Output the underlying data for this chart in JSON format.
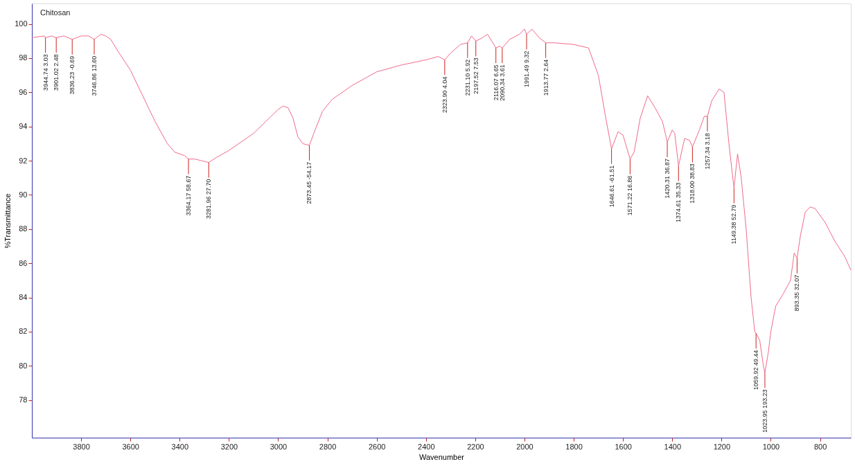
{
  "chart_data": {
    "type": "line",
    "title": "Chitosan",
    "xlabel": "Wavenumber",
    "ylabel": "%Transmittance",
    "xlim": [
      4000,
      675
    ],
    "ylim": [
      75.8,
      101.2
    ],
    "xticks": [
      3800,
      3600,
      3400,
      3200,
      3000,
      2800,
      2600,
      2400,
      2200,
      2000,
      1800,
      1600,
      1400,
      1200,
      1000,
      800
    ],
    "yticks": [
      78,
      80,
      82,
      84,
      86,
      88,
      90,
      92,
      94,
      96,
      98,
      100
    ],
    "grid": false,
    "marker": "none",
    "line_style": "solid",
    "x": [
      4000,
      3950,
      3944.74,
      3920,
      3901.02,
      3870,
      3836.23,
      3800,
      3770,
      3746.86,
      3720,
      3700,
      3680,
      3650,
      3600,
      3550,
      3500,
      3450,
      3420,
      3380,
      3364.17,
      3340,
      3310,
      3281.96,
      3250,
      3200,
      3150,
      3100,
      3050,
      3000,
      2980,
      2960,
      2940,
      2920,
      2900,
      2873.45,
      2850,
      2820,
      2780,
      2700,
      2600,
      2500,
      2400,
      2350,
      2323.9,
      2300,
      2260,
      2231.1,
      2215,
      2197.52,
      2170,
      2150,
      2116.07,
      2100,
      2090.34,
      2060,
      2020,
      2000,
      1991.49,
      1970,
      1940,
      1913.77,
      1880,
      1800,
      1740,
      1700,
      1670,
      1646.61,
      1620,
      1600,
      1571.22,
      1555,
      1530,
      1500,
      1470,
      1440,
      1420.31,
      1400,
      1390,
      1374.61,
      1350,
      1330,
      1318,
      1290,
      1270,
      1257.34,
      1240,
      1210,
      1190,
      1170,
      1149.38,
      1135,
      1120,
      1100,
      1080,
      1065,
      1059.92,
      1045,
      1030,
      1023.95,
      1010,
      1000,
      980,
      950,
      920,
      905,
      893.35,
      880,
      860,
      840,
      820,
      780,
      740,
      700,
      675
    ],
    "series": [
      {
        "color": "#f06a8a",
        "values": [
          99.2,
          99.3,
          99.2,
          99.3,
          99.2,
          99.3,
          99.1,
          99.3,
          99.3,
          99.1,
          99.4,
          99.3,
          99.1,
          98.4,
          97.3,
          95.8,
          94.3,
          93.0,
          92.5,
          92.3,
          92.1,
          92.1,
          92.0,
          91.9,
          92.2,
          92.6,
          93.1,
          93.6,
          94.3,
          95.0,
          95.2,
          95.1,
          94.5,
          93.4,
          93.0,
          92.9,
          93.8,
          94.9,
          95.6,
          96.4,
          97.2,
          97.6,
          97.9,
          98.1,
          97.9,
          98.3,
          98.8,
          98.9,
          99.3,
          99.0,
          99.2,
          99.4,
          98.6,
          98.7,
          98.6,
          99.1,
          99.4,
          99.7,
          99.4,
          99.7,
          99.2,
          98.9,
          98.9,
          98.8,
          98.6,
          97.0,
          94.5,
          92.7,
          93.7,
          93.5,
          92.1,
          92.5,
          94.5,
          95.8,
          95.1,
          94.3,
          93.1,
          93.8,
          93.6,
          91.7,
          93.3,
          93.2,
          92.8,
          93.8,
          94.6,
          94.6,
          95.5,
          96.2,
          96.0,
          93.0,
          90.4,
          92.4,
          91.0,
          88.0,
          84.0,
          82.0,
          81.9,
          81.5,
          80.0,
          79.6,
          80.8,
          82.0,
          83.5,
          84.2,
          85.0,
          86.6,
          86.3,
          87.6,
          89.0,
          89.3,
          89.2,
          88.4,
          87.3,
          86.4,
          85.6
        ]
      }
    ],
    "annotations": [
      {
        "text": "3944.74  3.03",
        "x": 3944.74,
        "y": 99.2
      },
      {
        "text": "3901.02  2.48",
        "x": 3901.02,
        "y": 99.2
      },
      {
        "text": "3836.23  -0.69",
        "x": 3836.23,
        "y": 99.1
      },
      {
        "text": "3746.86  13.60",
        "x": 3746.86,
        "y": 99.1
      },
      {
        "text": "3364.17  58.67",
        "x": 3364.17,
        "y": 92.1
      },
      {
        "text": "3281.96  27.70",
        "x": 3281.96,
        "y": 91.9
      },
      {
        "text": "2873.45  -54.17",
        "x": 2873.45,
        "y": 92.9
      },
      {
        "text": "2323.90  4.04",
        "x": 2323.9,
        "y": 97.9
      },
      {
        "text": "2231.10  5.92",
        "x": 2231.1,
        "y": 98.9
      },
      {
        "text": "2197.52  7.53",
        "x": 2197.52,
        "y": 99.0
      },
      {
        "text": "2116.07  6.65",
        "x": 2116.07,
        "y": 98.6
      },
      {
        "text": "2090.34  3.61",
        "x": 2090.34,
        "y": 98.6
      },
      {
        "text": "1991.49  9.32",
        "x": 1991.49,
        "y": 99.4
      },
      {
        "text": "1913.77  2.64",
        "x": 1913.77,
        "y": 98.9
      },
      {
        "text": "1646.61  -61.51",
        "x": 1646.61,
        "y": 92.7
      },
      {
        "text": "1571.22  16.86",
        "x": 1571.22,
        "y": 92.1
      },
      {
        "text": "1420.31  36.87",
        "x": 1420.31,
        "y": 93.1
      },
      {
        "text": "1374.61  35.33",
        "x": 1374.61,
        "y": 91.7
      },
      {
        "text": "1318.00  38.83",
        "x": 1318.0,
        "y": 92.8
      },
      {
        "text": "1257.34  3.18",
        "x": 1257.34,
        "y": 94.6
      },
      {
        "text": "1149.38  52.79",
        "x": 1149.38,
        "y": 90.4
      },
      {
        "text": "1059.92  49.44",
        "x": 1059.92,
        "y": 81.9
      },
      {
        "text": "1023.95  193.23",
        "x": 1023.95,
        "y": 79.6
      },
      {
        "text": "893.35  32.07",
        "x": 893.35,
        "y": 86.3
      }
    ]
  }
}
